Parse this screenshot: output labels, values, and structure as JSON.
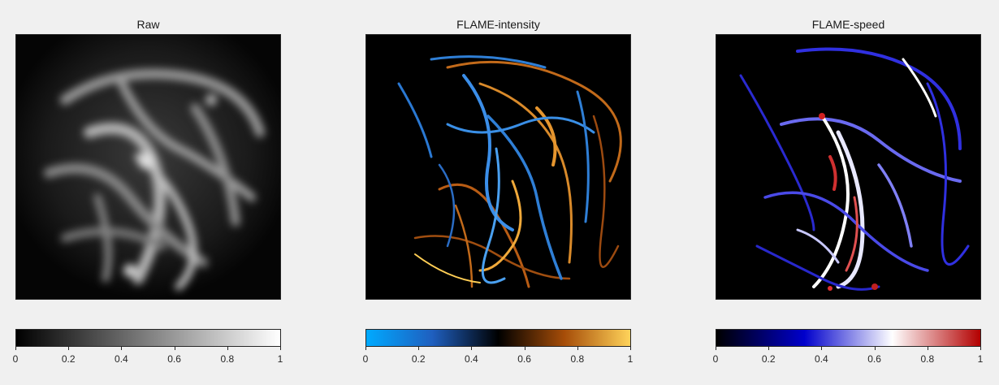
{
  "panels": [
    {
      "title": "Raw",
      "colormap": "gray",
      "colorbar_stops": [
        "#000000",
        "#ffffff"
      ],
      "ticks": [
        "0",
        "0.2",
        "0.4",
        "0.6",
        "0.8",
        "1"
      ]
    },
    {
      "title": "FLAME-intensity",
      "colormap": "blue-black-orange",
      "colorbar_stops": [
        "#00aaff",
        "#1f5fbf",
        "#000000",
        "#a64d08",
        "#ffd35a"
      ],
      "ticks": [
        "0",
        "0.2",
        "0.4",
        "0.6",
        "0.8",
        "1"
      ]
    },
    {
      "title": "FLAME-speed",
      "colormap": "black-blue-white-red",
      "colorbar_stops": [
        "#000000",
        "#0000cc",
        "#ffffff",
        "#b30000"
      ],
      "ticks": [
        "0",
        "0.2",
        "0.4",
        "0.6",
        "0.8",
        "1"
      ]
    }
  ]
}
